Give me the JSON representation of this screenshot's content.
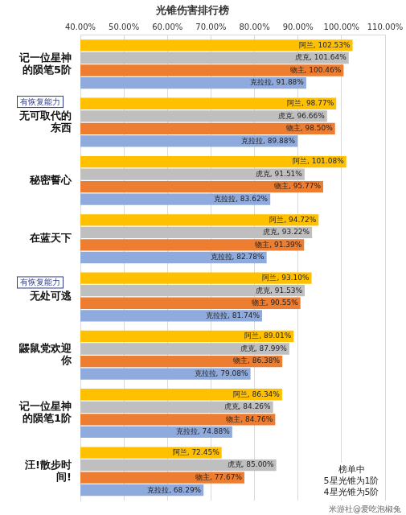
{
  "chart_data": {
    "type": "bar",
    "title": "光锥伤害排行榜",
    "orientation": "horizontal",
    "grid": true,
    "legend": false,
    "data_labels": true,
    "categories": [
      "记一位星神的陨笔5阶",
      "无可取代的东西",
      "秘密誓心",
      "在蓝天下",
      "无处可逃",
      "鼹鼠党欢迎你",
      "记一位星神的陨笔1阶",
      "汪!散步时间!"
    ],
    "series": [
      {
        "name": "阿兰",
        "color": "#ffc000",
        "values": [
          102.53,
          98.77,
          101.08,
          94.72,
          93.1,
          89.01,
          86.34,
          72.45
        ],
        "value_labels": [
          "阿兰, 102.53%",
          "阿兰, 98.77%",
          "阿兰, 101.08%",
          "阿兰, 94.72%",
          "阿兰, 93.10%",
          "阿兰, 89.01%",
          "阿兰, 86.34%",
          "阿兰, 72.45%"
        ]
      },
      {
        "name": "虎克",
        "color": "#bfbfbf",
        "values": [
          101.64,
          96.66,
          91.51,
          93.22,
          91.53,
          87.99,
          84.26,
          85.0
        ],
        "value_labels": [
          "虎克, 101.64%",
          "虎克, 96.66%",
          "虎克, 91.51%",
          "虎克, 93.22%",
          "虎克, 91.53%",
          "虎克, 87.99%",
          "虎克, 84.26%",
          "虎克, 85.00%"
        ]
      },
      {
        "name": "物主",
        "color": "#ed7d31",
        "values": [
          100.46,
          98.5,
          95.77,
          91.39,
          90.55,
          86.38,
          84.76,
          77.67
        ],
        "value_labels": [
          "物主, 100.46%",
          "物主, 98.50%",
          "物主, 95.77%",
          "物主, 91.39%",
          "物主, 90.55%",
          "物主, 86.38%",
          "物主, 84.76%",
          "物主, 77.67%"
        ]
      },
      {
        "name": "克拉拉",
        "color": "#8faadc",
        "values": [
          91.88,
          89.88,
          83.62,
          82.78,
          81.74,
          79.08,
          74.88,
          68.29
        ],
        "value_labels": [
          "克拉拉, 91.88%",
          "克拉拉, 89.88%",
          "克拉拉, 83.62%",
          "克拉拉, 82.78%",
          "克拉拉, 81.74%",
          "克拉拉, 79.08%",
          "克拉拉, 74.88%",
          "克拉拉, 68.29%"
        ]
      }
    ],
    "xlim": [
      40,
      110
    ],
    "xticks": [
      {
        "value": 40,
        "label": "40.00%"
      },
      {
        "value": 50,
        "label": "50.00%"
      },
      {
        "value": 60,
        "label": "60.00%"
      },
      {
        "value": 70,
        "label": "70.00%"
      },
      {
        "value": 80,
        "label": "80.00%"
      },
      {
        "value": 90,
        "label": "90.00%"
      },
      {
        "value": 100,
        "label": "100.00%"
      },
      {
        "value": 110,
        "label": "110.00%"
      }
    ],
    "annotations": [
      {
        "category": "无可取代的东西",
        "text": "有恢复能力"
      },
      {
        "category": "无处可逃",
        "text": "有恢复能力"
      }
    ],
    "note": [
      "榜单中",
      "5星光锥为1阶",
      "4星光锥为5阶"
    ],
    "watermark": "米游社@爱吃泡椒兔"
  }
}
